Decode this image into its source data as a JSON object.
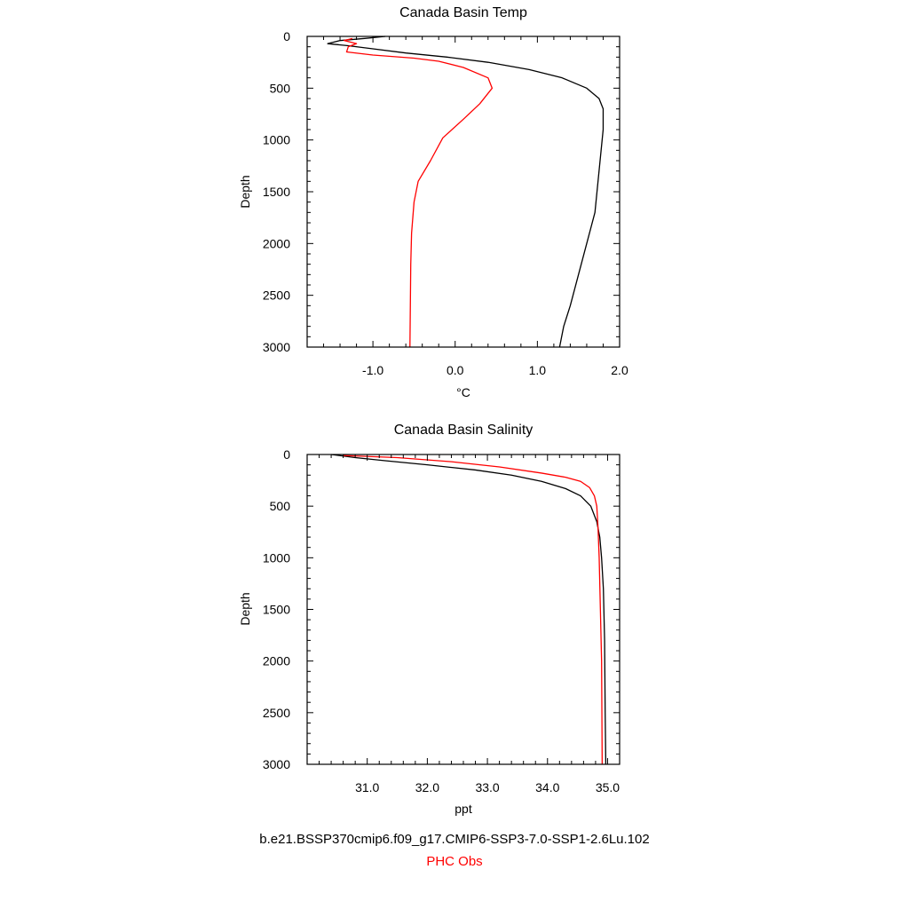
{
  "chart_data": [
    {
      "type": "line",
      "title": "Canada Basin Temp",
      "xlabel": "°C",
      "ylabel": "Depth",
      "xlim": [
        -1.8,
        2.0
      ],
      "ylim": [
        3000,
        0
      ],
      "x_tick_labels": [
        "-1.0",
        "0.0",
        "1.0",
        "2.0"
      ],
      "x_ticks": [
        -1.0,
        0.0,
        1.0,
        2.0
      ],
      "y_tick_labels": [
        "0",
        "500",
        "1000",
        "1500",
        "2000",
        "2500",
        "3000"
      ],
      "y_ticks": [
        0,
        500,
        1000,
        1500,
        2000,
        2500,
        3000
      ],
      "grid": false,
      "series": [
        {
          "name": "b.e21.BSSP370cmip6.f09_g17.CMIP6-SSP3-7.0-SSP1-2.6Lu.102",
          "color": "#000000",
          "points": [
            [
              -0.85,
              0
            ],
            [
              -1.1,
              20
            ],
            [
              -1.4,
              40
            ],
            [
              -1.55,
              70
            ],
            [
              -1.3,
              90
            ],
            [
              -1.0,
              120
            ],
            [
              -0.6,
              160
            ],
            [
              -0.1,
              200
            ],
            [
              0.4,
              250
            ],
            [
              0.9,
              320
            ],
            [
              1.3,
              400
            ],
            [
              1.6,
              500
            ],
            [
              1.75,
              600
            ],
            [
              1.8,
              700
            ],
            [
              1.8,
              900
            ],
            [
              1.75,
              1300
            ],
            [
              1.7,
              1700
            ],
            [
              1.6,
              2000
            ],
            [
              1.5,
              2300
            ],
            [
              1.4,
              2600
            ],
            [
              1.32,
              2800
            ],
            [
              1.27,
              3000
            ]
          ]
        },
        {
          "name": "PHC Obs",
          "color": "#ff0000",
          "points": [
            [
              -1.25,
              20
            ],
            [
              -1.35,
              40
            ],
            [
              -1.2,
              70
            ],
            [
              -1.3,
              100
            ],
            [
              -1.32,
              150
            ],
            [
              -1.0,
              180
            ],
            [
              -0.5,
              210
            ],
            [
              -0.2,
              240
            ],
            [
              0.1,
              300
            ],
            [
              0.4,
              400
            ],
            [
              0.45,
              500
            ],
            [
              0.3,
              650
            ],
            [
              0.1,
              800
            ],
            [
              -0.15,
              980
            ],
            [
              -0.3,
              1200
            ],
            [
              -0.45,
              1400
            ],
            [
              -0.5,
              1600
            ],
            [
              -0.53,
              1900
            ],
            [
              -0.54,
              2200
            ],
            [
              -0.55,
              3000
            ]
          ]
        }
      ]
    },
    {
      "type": "line",
      "title": "Canada Basin Salinity",
      "xlabel": "ppt",
      "ylabel": "Depth",
      "xlim": [
        30.0,
        35.2
      ],
      "ylim": [
        3000,
        0
      ],
      "x_tick_labels": [
        "31.0",
        "32.0",
        "33.0",
        "34.0",
        "35.0"
      ],
      "x_ticks": [
        31.0,
        32.0,
        33.0,
        34.0,
        35.0
      ],
      "y_tick_labels": [
        "0",
        "500",
        "1000",
        "1500",
        "2000",
        "2500",
        "3000"
      ],
      "y_ticks": [
        0,
        500,
        1000,
        1500,
        2000,
        2500,
        3000
      ],
      "grid": false,
      "series": [
        {
          "name": "b.e21.BSSP370cmip6.f09_g17.CMIP6-SSP3-7.0-SSP1-2.6Lu.102",
          "color": "#000000",
          "points": [
            [
              30.4,
              0
            ],
            [
              30.8,
              30
            ],
            [
              31.3,
              60
            ],
            [
              32.0,
              100
            ],
            [
              32.8,
              150
            ],
            [
              33.4,
              200
            ],
            [
              33.9,
              260
            ],
            [
              34.3,
              330
            ],
            [
              34.55,
              400
            ],
            [
              34.72,
              500
            ],
            [
              34.82,
              650
            ],
            [
              34.87,
              800
            ],
            [
              34.9,
              1000
            ],
            [
              34.93,
              1300
            ],
            [
              34.95,
              1800
            ],
            [
              34.96,
              2500
            ],
            [
              34.97,
              3000
            ]
          ]
        },
        {
          "name": "PHC Obs",
          "color": "#ff0000",
          "points": [
            [
              30.6,
              10
            ],
            [
              31.5,
              30
            ],
            [
              32.4,
              70
            ],
            [
              33.2,
              120
            ],
            [
              33.9,
              180
            ],
            [
              34.3,
              220
            ],
            [
              34.55,
              260
            ],
            [
              34.7,
              320
            ],
            [
              34.78,
              400
            ],
            [
              34.82,
              500
            ],
            [
              34.84,
              700
            ],
            [
              34.86,
              1000
            ],
            [
              34.88,
              1500
            ],
            [
              34.9,
              2000
            ],
            [
              34.91,
              3000
            ]
          ]
        }
      ]
    }
  ],
  "legend": {
    "model_label": "b.e21.BSSP370cmip6.f09_g17.CMIP6-SSP3-7.0-SSP1-2.6Lu.102",
    "obs_label": "PHC Obs",
    "model_color": "#000000",
    "obs_color": "#ff0000"
  }
}
